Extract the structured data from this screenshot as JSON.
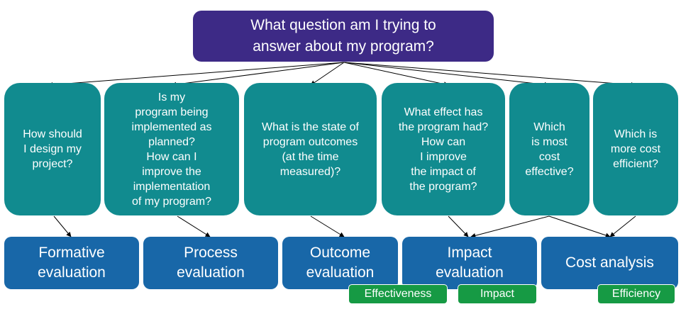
{
  "top_question": "What question am I trying to\nanswer about my program?",
  "questions": [
    "How should\nI design my\nproject?",
    "Is my\nprogram being\nimplemented as\nplanned?\nHow can I\nimprove the\nimplementation\nof my program?",
    "What is the state of\nprogram outcomes\n(at the time\nmeasured)?",
    "What effect has\nthe program had?\nHow can\nI improve\nthe impact of\nthe program?",
    "Which\nis most\ncost\neffective?",
    "Which is\nmore cost\nefficient?"
  ],
  "evaluations": [
    "Formative\nevaluation",
    "Process\nevaluation",
    "Outcome\nevaluation",
    "Impact\nevaluation",
    "Cost analysis"
  ],
  "tags": [
    "Effectiveness",
    "Impact",
    "Efficiency"
  ],
  "colors": {
    "top": "#3d2a86",
    "question": "#118b8f",
    "evaluation": "#1867a8",
    "tag": "#169a44"
  }
}
